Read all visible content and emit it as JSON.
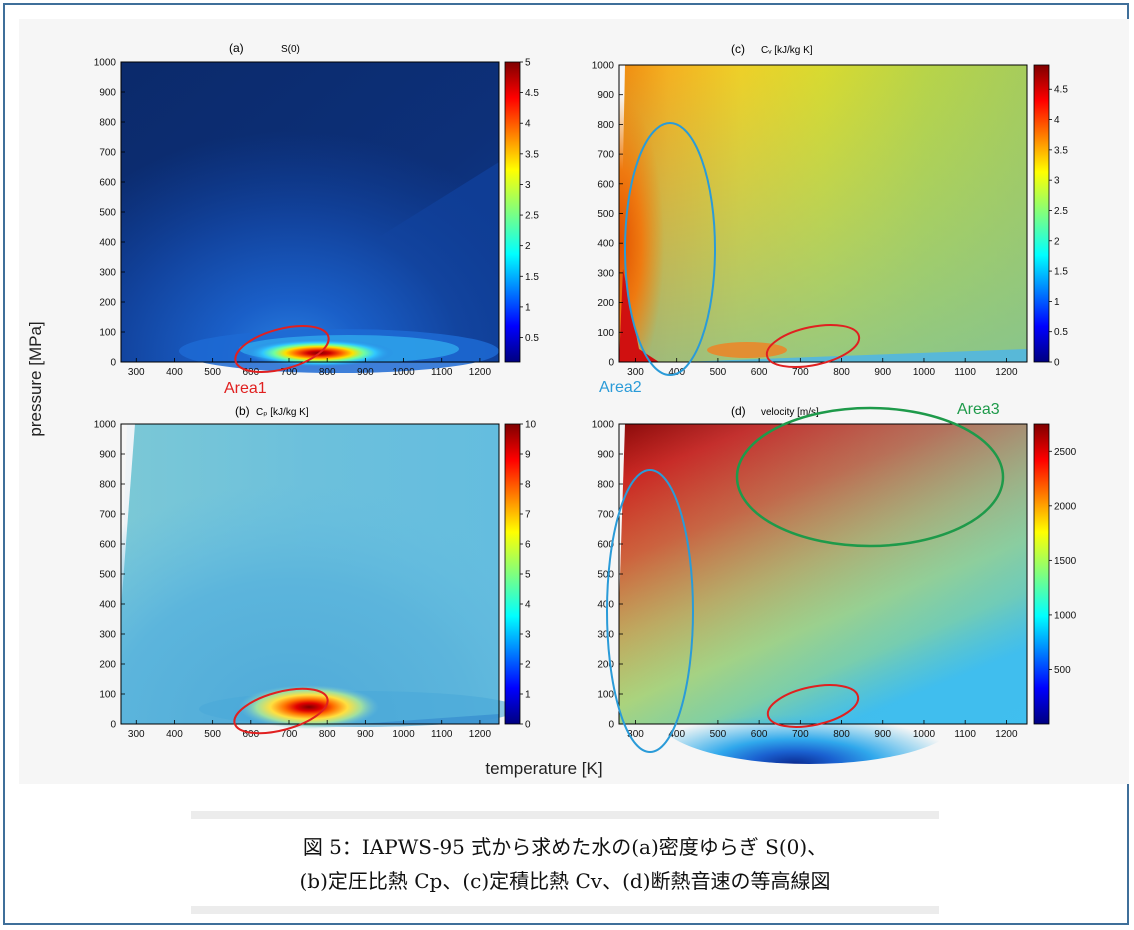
{
  "figure": {
    "ylabel": "pressure [MPa]",
    "xlabel": "temperature [K]"
  },
  "chart_data": [
    {
      "type": "heatmap",
      "panel_label": "(a)",
      "title": "S(0)",
      "x_ticks": [
        300,
        400,
        500,
        600,
        700,
        800,
        900,
        1000,
        1100,
        1200
      ],
      "y_ticks": [
        0,
        100,
        200,
        300,
        400,
        500,
        600,
        700,
        800,
        900,
        1000
      ],
      "xlim": [
        260,
        1250
      ],
      "ylim": [
        0,
        1000
      ],
      "colorbar": {
        "min": 0.1,
        "max": 5,
        "ticks": [
          "0.5",
          "1",
          "1.5",
          "2",
          "2.5",
          "3",
          "3.5",
          "4",
          "4.5",
          "5"
        ],
        "tick_values": [
          0.5,
          1,
          1.5,
          2,
          2.5,
          3,
          3.5,
          4,
          4.5,
          5
        ]
      },
      "annotation": {
        "label": "Area1",
        "color": "#e02020",
        "center": [
          680,
          30
        ]
      }
    },
    {
      "type": "heatmap",
      "panel_label": "(c)",
      "title": "Cᵥ [kJ/kg K]",
      "x_ticks": [
        300,
        400,
        500,
        600,
        700,
        800,
        900,
        1000,
        1100,
        1200
      ],
      "y_ticks": [
        0,
        100,
        200,
        300,
        400,
        500,
        600,
        700,
        800,
        900,
        1000
      ],
      "xlim": [
        260,
        1250
      ],
      "ylim": [
        0,
        1000
      ],
      "colorbar": {
        "min": 0,
        "max": 4.9,
        "ticks": [
          "0",
          "0.5",
          "1",
          "1.5",
          "2",
          "2.5",
          "3",
          "3.5",
          "4",
          "4.5"
        ],
        "tick_values": [
          0,
          0.5,
          1,
          1.5,
          2,
          2.5,
          3,
          3.5,
          4,
          4.5
        ]
      },
      "annotation": {
        "label": "Area2",
        "color": "#2a9bd8"
      }
    },
    {
      "type": "heatmap",
      "panel_label": "(b)",
      "title": "Cₚ [kJ/kg K]",
      "x_ticks": [
        300,
        400,
        500,
        600,
        700,
        800,
        900,
        1000,
        1100,
        1200
      ],
      "y_ticks": [
        0,
        100,
        200,
        300,
        400,
        500,
        600,
        700,
        800,
        900,
        1000
      ],
      "xlim": [
        260,
        1250
      ],
      "ylim": [
        0,
        1000
      ],
      "colorbar": {
        "min": 0,
        "max": 10,
        "ticks": [
          "0",
          "1",
          "2",
          "3",
          "4",
          "5",
          "6",
          "7",
          "8",
          "9",
          "10"
        ],
        "tick_values": [
          0,
          1,
          2,
          3,
          4,
          5,
          6,
          7,
          8,
          9,
          10
        ]
      }
    },
    {
      "type": "heatmap",
      "panel_label": "(d)",
      "title": "velocity [m/s]",
      "x_ticks": [
        300,
        400,
        500,
        600,
        700,
        800,
        900,
        1000,
        1100,
        1200
      ],
      "y_ticks": [
        0,
        100,
        200,
        300,
        400,
        500,
        600,
        700,
        800,
        900,
        1000
      ],
      "xlim": [
        260,
        1250
      ],
      "ylim": [
        0,
        1000
      ],
      "colorbar": {
        "min": 0,
        "max": 2750,
        "ticks": [
          "500",
          "1000",
          "1500",
          "2000",
          "2500"
        ],
        "tick_values": [
          500,
          1000,
          1500,
          2000,
          2500
        ]
      },
      "annotation": {
        "label": "Area3",
        "color": "#1e9a4a"
      }
    }
  ],
  "caption": {
    "line1": "図 5：IAPWS-95 式から求めた水の(a)密度ゆらぎ S(0)、",
    "line2": "(b)定圧比熱 Cp、(c)定積比熱 Cv、(d)断熱音速の等高線図"
  },
  "colors": {
    "frame_border": "#3f6f9a",
    "area1": "#e02020",
    "area2": "#2a9bd8",
    "area3": "#1e9a4a"
  }
}
